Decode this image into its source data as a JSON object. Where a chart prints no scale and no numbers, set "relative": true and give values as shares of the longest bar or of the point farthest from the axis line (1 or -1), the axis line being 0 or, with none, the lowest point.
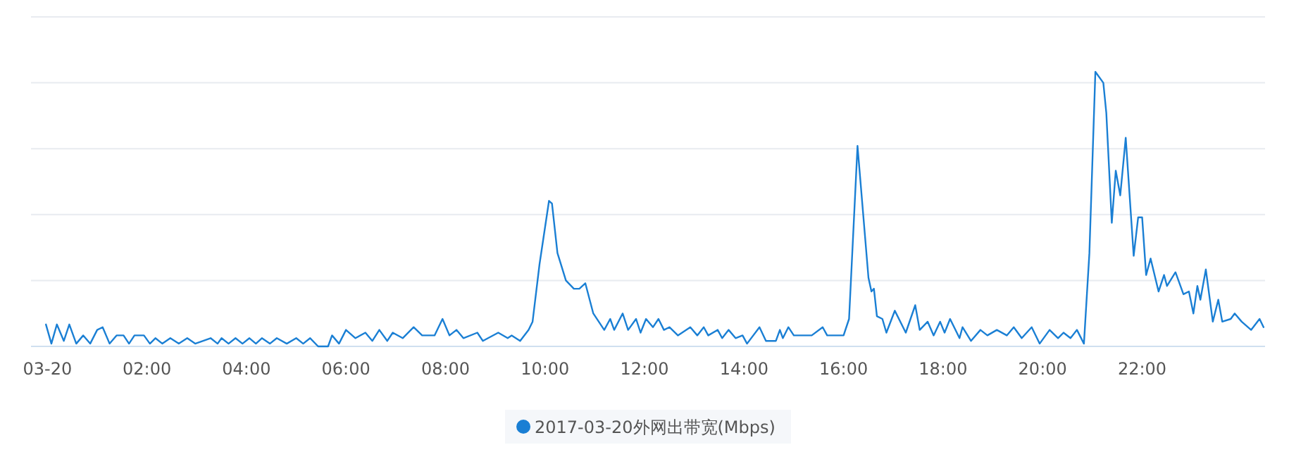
{
  "chart_data": {
    "type": "line",
    "relative": true,
    "grid": "y",
    "legend": "bottom",
    "marker": "none",
    "line_style": "solid",
    "xlim": [
      -0.33,
      24.47
    ],
    "xticks": [
      {
        "value": 0,
        "label": "03-20"
      },
      {
        "value": 2,
        "label": "02:00"
      },
      {
        "value": 4,
        "label": "04:00"
      },
      {
        "value": 6,
        "label": "06:00"
      },
      {
        "value": 8,
        "label": "08:00"
      },
      {
        "value": 10,
        "label": "10:00"
      },
      {
        "value": 12,
        "label": "12:00"
      },
      {
        "value": 14,
        "label": "14:00"
      },
      {
        "value": 16,
        "label": "16:00"
      },
      {
        "value": 18,
        "label": "18:00"
      },
      {
        "value": 20,
        "label": "20:00"
      },
      {
        "value": 22,
        "label": "22:00"
      }
    ],
    "x": [
      -0.03,
      0.08,
      0.19,
      0.33,
      0.44,
      0.58,
      0.72,
      0.86,
      1.0,
      1.11,
      1.25,
      1.39,
      1.53,
      1.64,
      1.75,
      1.94,
      2.06,
      2.17,
      2.31,
      2.47,
      2.64,
      2.81,
      2.97,
      3.28,
      3.42,
      3.5,
      3.64,
      3.78,
      3.92,
      4.06,
      4.19,
      4.31,
      4.47,
      4.61,
      4.81,
      5.0,
      5.14,
      5.28,
      5.44,
      5.64,
      5.72,
      5.86,
      6.0,
      6.19,
      6.39,
      6.53,
      6.67,
      6.83,
      6.94,
      7.14,
      7.36,
      7.53,
      7.78,
      7.94,
      8.08,
      8.22,
      8.36,
      8.64,
      8.75,
      9.06,
      9.25,
      9.33,
      9.5,
      9.67,
      9.75,
      9.89,
      10.08,
      10.14,
      10.25,
      10.42,
      10.58,
      10.69,
      10.81,
      10.97,
      11.19,
      11.31,
      11.39,
      11.56,
      11.67,
      11.83,
      11.92,
      12.03,
      12.17,
      12.28,
      12.39,
      12.5,
      12.67,
      12.92,
      13.06,
      13.19,
      13.28,
      13.47,
      13.56,
      13.69,
      13.83,
      13.97,
      14.06,
      14.31,
      14.44,
      14.64,
      14.72,
      14.78,
      14.89,
      15.0,
      15.36,
      15.58,
      15.67,
      16.0,
      16.11,
      16.28,
      16.39,
      16.5,
      16.56,
      16.61,
      16.67,
      16.78,
      16.86,
      17.03,
      17.25,
      17.44,
      17.53,
      17.69,
      17.81,
      17.94,
      18.03,
      18.14,
      18.33,
      18.39,
      18.56,
      18.75,
      18.89,
      19.08,
      19.28,
      19.42,
      19.58,
      19.78,
      19.94,
      20.14,
      20.31,
      20.42,
      20.56,
      20.69,
      20.83,
      20.94,
      21.06,
      21.22,
      21.28,
      21.39,
      21.47,
      21.56,
      21.67,
      21.83,
      21.92,
      22.0,
      22.08,
      22.17,
      22.33,
      22.44,
      22.5,
      22.67,
      22.83,
      22.94,
      23.03,
      23.11,
      23.17,
      23.28,
      23.42,
      23.53,
      23.61,
      23.78,
      23.86,
      24.0,
      24.19,
      24.36,
      24.44
    ],
    "series": [
      {
        "name": "2017-03-20外网出带宽(Mbps)",
        "color": "#1a7fd4",
        "values": [
          0.08,
          0.01,
          0.08,
          0.02,
          0.08,
          0.01,
          0.04,
          0.01,
          0.06,
          0.07,
          0.01,
          0.04,
          0.04,
          0.01,
          0.04,
          0.04,
          0.01,
          0.03,
          0.01,
          0.03,
          0.01,
          0.03,
          0.01,
          0.03,
          0.01,
          0.03,
          0.01,
          0.03,
          0.01,
          0.03,
          0.01,
          0.03,
          0.01,
          0.03,
          0.01,
          0.03,
          0.01,
          0.03,
          0.0,
          0.0,
          0.04,
          0.01,
          0.06,
          0.03,
          0.05,
          0.02,
          0.06,
          0.02,
          0.05,
          0.03,
          0.07,
          0.04,
          0.04,
          0.1,
          0.04,
          0.06,
          0.03,
          0.05,
          0.02,
          0.05,
          0.03,
          0.04,
          0.02,
          0.06,
          0.09,
          0.3,
          0.53,
          0.52,
          0.34,
          0.24,
          0.21,
          0.21,
          0.23,
          0.12,
          0.06,
          0.1,
          0.06,
          0.12,
          0.06,
          0.1,
          0.05,
          0.1,
          0.07,
          0.1,
          0.06,
          0.07,
          0.04,
          0.07,
          0.04,
          0.07,
          0.04,
          0.06,
          0.03,
          0.06,
          0.03,
          0.04,
          0.01,
          0.07,
          0.02,
          0.02,
          0.06,
          0.03,
          0.07,
          0.04,
          0.04,
          0.07,
          0.04,
          0.04,
          0.1,
          0.73,
          0.49,
          0.25,
          0.2,
          0.21,
          0.11,
          0.1,
          0.05,
          0.13,
          0.05,
          0.15,
          0.06,
          0.09,
          0.04,
          0.09,
          0.05,
          0.1,
          0.03,
          0.07,
          0.02,
          0.06,
          0.04,
          0.06,
          0.04,
          0.07,
          0.03,
          0.07,
          0.01,
          0.06,
          0.03,
          0.05,
          0.03,
          0.06,
          0.01,
          0.34,
          1.0,
          0.96,
          0.85,
          0.45,
          0.64,
          0.55,
          0.76,
          0.33,
          0.47,
          0.47,
          0.26,
          0.32,
          0.2,
          0.26,
          0.22,
          0.27,
          0.19,
          0.2,
          0.12,
          0.22,
          0.17,
          0.28,
          0.09,
          0.17,
          0.09,
          0.1,
          0.12,
          0.09,
          0.06,
          0.1,
          0.07
        ]
      }
    ]
  }
}
